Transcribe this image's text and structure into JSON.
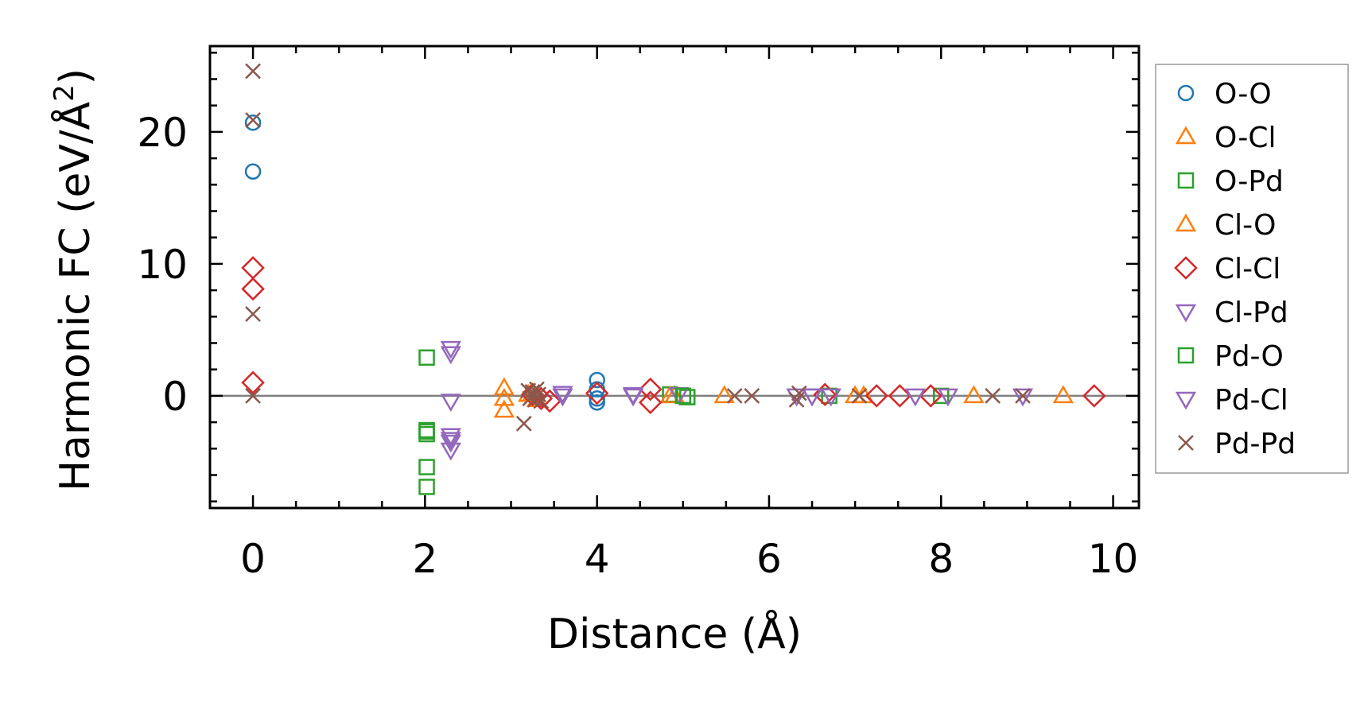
{
  "chart_data": {
    "type": "scatter",
    "title": "",
    "xlabel": "Distance (Å)",
    "ylabel_main": "Harmonic FC (eV/Å",
    "ylabel_sup": "2",
    "ylabel_close": ")",
    "xlim": [
      -0.5,
      10.3
    ],
    "ylim": [
      -8.5,
      26.5
    ],
    "xticks": [
      0,
      2,
      4,
      6,
      8,
      10
    ],
    "xtick_labels": [
      "0",
      "2",
      "4",
      "6",
      "8",
      "10"
    ],
    "yticks": [
      0,
      10,
      20
    ],
    "ytick_labels": [
      "0",
      "10",
      "20"
    ],
    "x_minor_step": 0.5,
    "y_minor_step": 2,
    "reference_line_y": 0,
    "legend_position": "outside-right",
    "series": [
      {
        "name": "O-O",
        "marker": "circle",
        "color": "#1f77b4",
        "x": [
          0,
          0,
          4.0,
          4.0,
          4.0,
          4.0
        ],
        "y": [
          20.7,
          17.0,
          1.2,
          0.5,
          -0.2,
          -0.5
        ]
      },
      {
        "name": "O-Cl",
        "marker": "triangle-up",
        "color": "#ff7f0e",
        "x": [
          2.92,
          2.92,
          2.92,
          3.25,
          4.9,
          5.48,
          7.0,
          8.38,
          9.42
        ],
        "y": [
          0.6,
          -0.2,
          -1.1,
          0.2,
          0,
          0,
          0,
          0,
          0
        ]
      },
      {
        "name": "O-Pd",
        "marker": "square",
        "color": "#2ca02c",
        "x": [
          2.02,
          2.02,
          2.02,
          2.02,
          2.02,
          4.85,
          5.05,
          6.7,
          8.0
        ],
        "y": [
          2.9,
          -2.7,
          -2.9,
          -5.4,
          -6.9,
          0.1,
          -0.1,
          0,
          0
        ]
      },
      {
        "name": "Cl-O",
        "marker": "triangle-up",
        "color": "#ff7f0e",
        "x": [
          3.2,
          3.3,
          4.85,
          7.1
        ],
        "y": [
          0.1,
          -0.3,
          0,
          0
        ]
      },
      {
        "name": "Cl-Cl",
        "marker": "diamond",
        "color": "#d62728",
        "x": [
          0,
          0,
          0,
          3.25,
          3.35,
          3.45,
          4.0,
          4.62,
          4.62,
          6.65,
          7.25,
          7.52,
          7.88,
          9.78
        ],
        "y": [
          9.7,
          8.1,
          1.0,
          0.1,
          -0.2,
          -0.4,
          0.2,
          0.5,
          -0.5,
          0.1,
          0,
          0,
          0,
          0
        ]
      },
      {
        "name": "Cl-Pd",
        "marker": "triangle-down",
        "color": "#9467bd",
        "x": [
          2.3,
          2.3,
          2.3,
          2.3,
          2.3,
          2.3,
          3.6,
          4.42,
          4.95,
          6.32,
          6.5,
          6.72,
          7.7,
          8.08,
          8.95
        ],
        "y": [
          3.6,
          3.2,
          -0.4,
          -3.0,
          -3.5,
          -4.1,
          0.2,
          0.1,
          0.1,
          0,
          0,
          0,
          0,
          0,
          0
        ]
      },
      {
        "name": "Pd-O",
        "marker": "square",
        "color": "#2ca02c",
        "x": [
          2.02,
          5.0
        ],
        "y": [
          -2.6,
          0
        ]
      },
      {
        "name": "Pd-Cl",
        "marker": "triangle-down",
        "color": "#9467bd",
        "x": [
          2.3,
          3.6,
          4.42,
          6.5
        ],
        "y": [
          -3.3,
          0,
          0,
          0
        ]
      },
      {
        "name": "Pd-Pd",
        "marker": "x",
        "color": "#8c564b",
        "x": [
          0,
          0,
          0,
          0,
          3.15,
          3.2,
          3.22,
          3.25,
          3.28,
          3.3,
          3.32,
          3.35,
          5.6,
          5.8,
          6.32,
          6.35,
          7.05,
          8.6,
          8.95
        ],
        "y": [
          24.6,
          20.9,
          6.2,
          0,
          -2.1,
          0.4,
          -0.2,
          0.3,
          -0.3,
          0.5,
          0.1,
          -0.4,
          0,
          0,
          -0.3,
          0.2,
          0,
          0,
          0
        ]
      }
    ]
  }
}
